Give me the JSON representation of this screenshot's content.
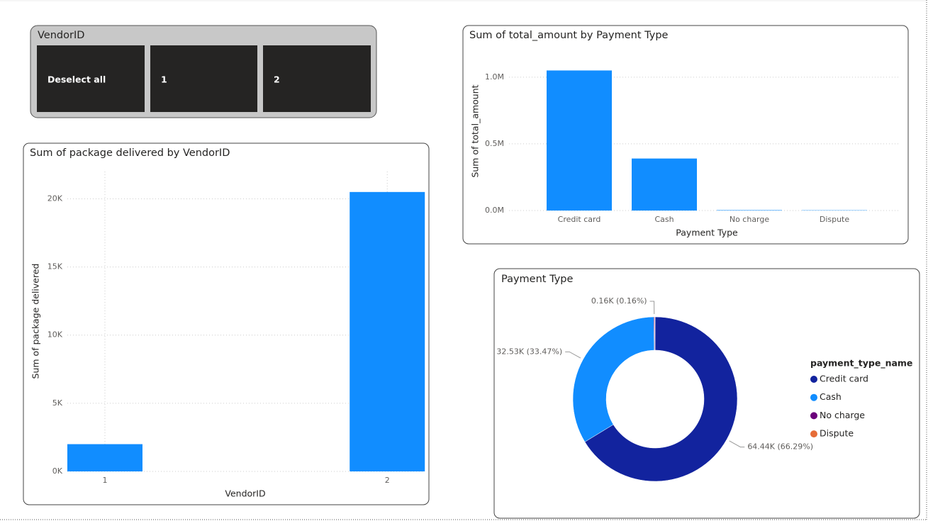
{
  "slicer": {
    "title": "VendorID",
    "items": [
      "Deselect all",
      "1",
      "2"
    ]
  },
  "chart_data": [
    {
      "type": "bar",
      "title": "Sum of package delivered by VendorID",
      "x_label": "VendorID",
      "y_label": "Sum of package delivered",
      "x": [
        1,
        2
      ],
      "values": [
        2000,
        20500
      ],
      "color": "#118dff",
      "xlim": [
        0.867,
        2.13
      ],
      "xticks": [
        1,
        2
      ],
      "ylim": [
        0,
        22000
      ],
      "yticks": [
        {
          "value": 0,
          "label": "0K"
        },
        {
          "value": 5000,
          "label": "5K"
        },
        {
          "value": 10000,
          "label": "10K"
        },
        {
          "value": 15000,
          "label": "15K"
        },
        {
          "value": 20000,
          "label": "20K"
        }
      ],
      "grid": true
    },
    {
      "type": "bar",
      "title": "Sum of total_amount by Payment Type",
      "x_label": "Payment Type",
      "y_label": "Sum of total_amount",
      "categories": [
        "Credit card",
        "Cash",
        "No charge",
        "Dispute"
      ],
      "values": [
        1050000,
        390000,
        3000,
        2000
      ],
      "color": "#118dff",
      "ylim": [
        0,
        1100000
      ],
      "yticks": [
        {
          "value": 0,
          "label": "0.0M"
        },
        {
          "value": 500000,
          "label": "0.5M"
        },
        {
          "value": 1000000,
          "label": "1.0M"
        }
      ],
      "grid": true
    },
    {
      "type": "pie",
      "title": "Payment Type",
      "legend_title": "payment_type_name",
      "categories": [
        "Credit card",
        "Cash",
        "No charge",
        "Dispute"
      ],
      "values": [
        64.44,
        32.53,
        0.16,
        0.08
      ],
      "value_labels": [
        "64.44K (66.29%)",
        "32.53K (33.47%)",
        "0.16K (0.16%)",
        null
      ],
      "colors": [
        "#12239e",
        "#118dff",
        "#6b007b",
        "#e66c37"
      ],
      "legend": "right"
    }
  ]
}
